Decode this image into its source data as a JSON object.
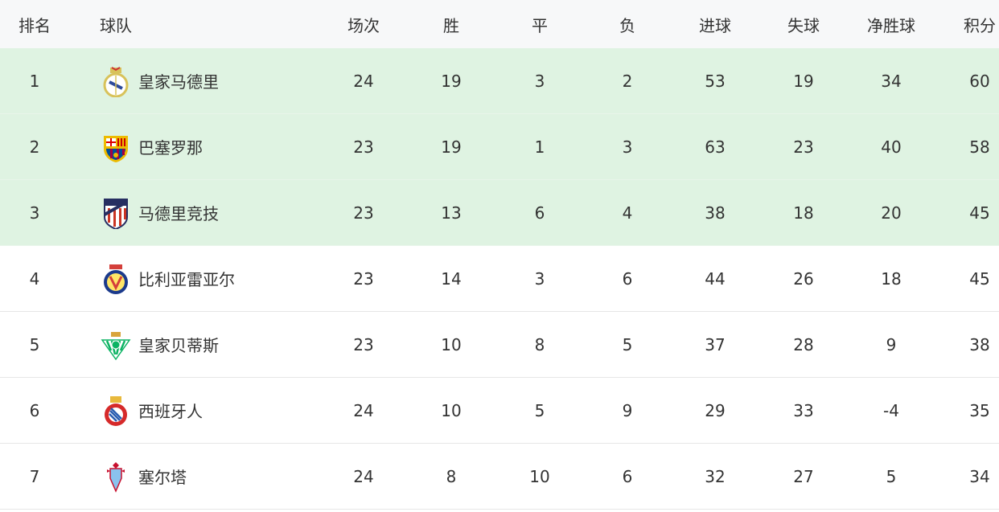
{
  "headers": [
    "排名",
    "球队",
    "场次",
    "胜",
    "平",
    "负",
    "进球",
    "失球",
    "净胜球",
    "积分"
  ],
  "highlight_color": "#dff3e2",
  "rows": [
    {
      "rank": "1",
      "team": "皇家马德里",
      "crest": "real-madrid-crest-icon",
      "colors": [
        "#d8c25a",
        "#ffffff",
        "#2c4a9a"
      ],
      "stats": [
        "24",
        "19",
        "3",
        "2",
        "53",
        "19",
        "34",
        "60"
      ],
      "highlighted": true
    },
    {
      "rank": "2",
      "team": "巴塞罗那",
      "crest": "barcelona-crest-icon",
      "colors": [
        "#a50044",
        "#004d98",
        "#edbb00"
      ],
      "stats": [
        "23",
        "19",
        "1",
        "3",
        "63",
        "23",
        "40",
        "58"
      ],
      "highlighted": true
    },
    {
      "rank": "3",
      "team": "马德里竞技",
      "crest": "atletico-madrid-crest-icon",
      "colors": [
        "#cb3524",
        "#ffffff",
        "#272e61"
      ],
      "stats": [
        "23",
        "13",
        "6",
        "4",
        "38",
        "18",
        "20",
        "45"
      ],
      "highlighted": true
    },
    {
      "rank": "4",
      "team": "比利亚雷亚尔",
      "crest": "villarreal-crest-icon",
      "colors": [
        "#ffe667",
        "#1b3a8c",
        "#d43f3a"
      ],
      "stats": [
        "23",
        "14",
        "3",
        "6",
        "44",
        "26",
        "18",
        "45"
      ],
      "highlighted": false
    },
    {
      "rank": "5",
      "team": "皇家贝蒂斯",
      "crest": "real-betis-crest-icon",
      "colors": [
        "#0bb363",
        "#ffffff",
        "#d9a43c"
      ],
      "stats": [
        "23",
        "10",
        "8",
        "5",
        "37",
        "28",
        "9",
        "38"
      ],
      "highlighted": false
    },
    {
      "rank": "6",
      "team": "西班牙人",
      "crest": "espanyol-crest-icon",
      "colors": [
        "#d62a2a",
        "#2a5db0",
        "#e8b93c"
      ],
      "stats": [
        "24",
        "10",
        "5",
        "9",
        "29",
        "33",
        "-4",
        "35"
      ],
      "highlighted": false
    },
    {
      "rank": "7",
      "team": "塞尔塔",
      "crest": "celta-vigo-crest-icon",
      "colors": [
        "#c8102e",
        "#8ac3ee",
        "#ffffff"
      ],
      "stats": [
        "24",
        "8",
        "10",
        "6",
        "32",
        "27",
        "5",
        "34"
      ],
      "highlighted": false
    }
  ]
}
